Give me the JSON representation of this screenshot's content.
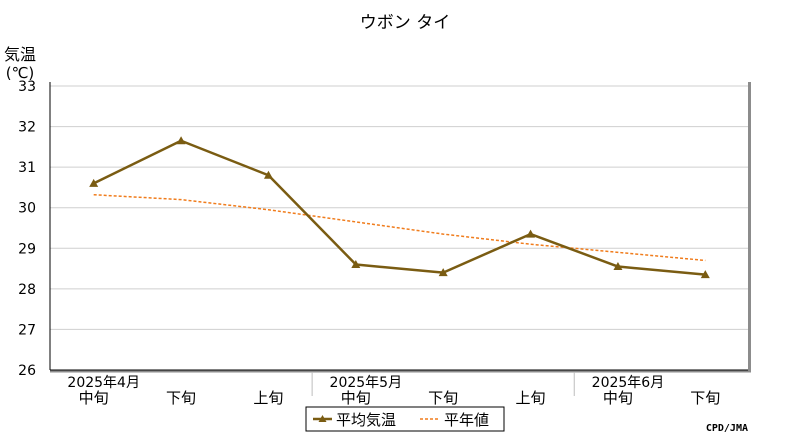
{
  "chart_data": {
    "type": "line",
    "title": "ウボン タイ",
    "ylabel": "気温",
    "yunit": "(℃)",
    "ylim": [
      26,
      33
    ],
    "yticks": [
      26,
      27,
      28,
      29,
      30,
      31,
      32,
      33
    ],
    "grid": true,
    "categories": [
      "中旬",
      "下旬",
      "上旬",
      "中旬",
      "下旬",
      "上旬",
      "中旬",
      "下旬"
    ],
    "month_labels": [
      {
        "label": "2025年4月",
        "at": 0
      },
      {
        "label": "2025年5月",
        "at": 3
      },
      {
        "label": "2025年6月",
        "at": 6
      }
    ],
    "month_separators": [
      2,
      5
    ],
    "series": [
      {
        "name": "平均気温",
        "style": "solid-triangle",
        "color": "#7a5c12",
        "values": [
          30.6,
          31.65,
          30.8,
          28.6,
          28.4,
          29.35,
          28.55,
          28.35
        ]
      },
      {
        "name": "平年値",
        "style": "dotted",
        "color": "#f07c1c",
        "values": [
          30.32,
          30.2,
          29.95,
          29.65,
          29.35,
          29.1,
          28.9,
          28.7
        ]
      }
    ],
    "legend_position": "bottom-center"
  },
  "credit": "CPD/JMA"
}
